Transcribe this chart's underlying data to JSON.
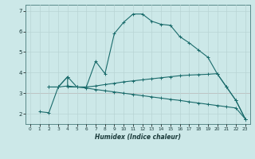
{
  "xlabel": "Humidex (Indice chaleur)",
  "bg_color": "#cce8e8",
  "line_color": "#1a6b6b",
  "grid_color_main": "#b8d4d4",
  "grid_color_red": "#d4a0a0",
  "xlim": [
    -0.5,
    23.5
  ],
  "ylim": [
    1.5,
    7.3
  ],
  "yticks": [
    2,
    3,
    4,
    5,
    6,
    7
  ],
  "xticks": [
    0,
    1,
    2,
    3,
    4,
    5,
    6,
    7,
    8,
    9,
    10,
    11,
    12,
    13,
    14,
    15,
    16,
    17,
    18,
    19,
    20,
    21,
    22,
    23
  ],
  "series1_x": [
    1,
    2,
    3,
    4,
    4,
    5,
    6,
    7,
    8,
    9,
    10,
    11,
    12,
    13,
    14,
    15,
    16,
    17,
    18,
    19,
    20,
    21,
    22,
    23
  ],
  "series1_y": [
    2.1,
    2.05,
    3.3,
    3.8,
    3.3,
    3.3,
    3.3,
    4.55,
    3.95,
    5.9,
    6.45,
    6.85,
    6.85,
    6.5,
    6.35,
    6.3,
    5.75,
    5.45,
    5.1,
    4.75,
    3.95,
    3.3,
    2.65,
    1.75
  ],
  "series2_x": [
    2,
    3,
    4,
    5,
    6,
    7,
    8,
    9,
    10,
    11,
    12,
    13,
    14,
    15,
    16,
    17,
    18,
    19,
    20,
    21,
    22,
    23
  ],
  "series2_y": [
    3.3,
    3.3,
    3.35,
    3.3,
    3.3,
    3.35,
    3.42,
    3.48,
    3.55,
    3.6,
    3.65,
    3.7,
    3.75,
    3.8,
    3.85,
    3.88,
    3.9,
    3.92,
    3.95,
    3.3,
    2.65,
    1.75
  ],
  "series3_x": [
    2,
    3,
    4,
    5,
    6,
    7,
    8,
    9,
    10,
    11,
    12,
    13,
    14,
    15,
    16,
    17,
    18,
    19,
    20,
    21,
    22,
    23
  ],
  "series3_y": [
    3.3,
    3.3,
    3.8,
    3.3,
    3.25,
    3.18,
    3.12,
    3.06,
    3.0,
    2.94,
    2.88,
    2.82,
    2.76,
    2.7,
    2.65,
    2.58,
    2.52,
    2.46,
    2.4,
    2.34,
    2.28,
    1.75
  ]
}
